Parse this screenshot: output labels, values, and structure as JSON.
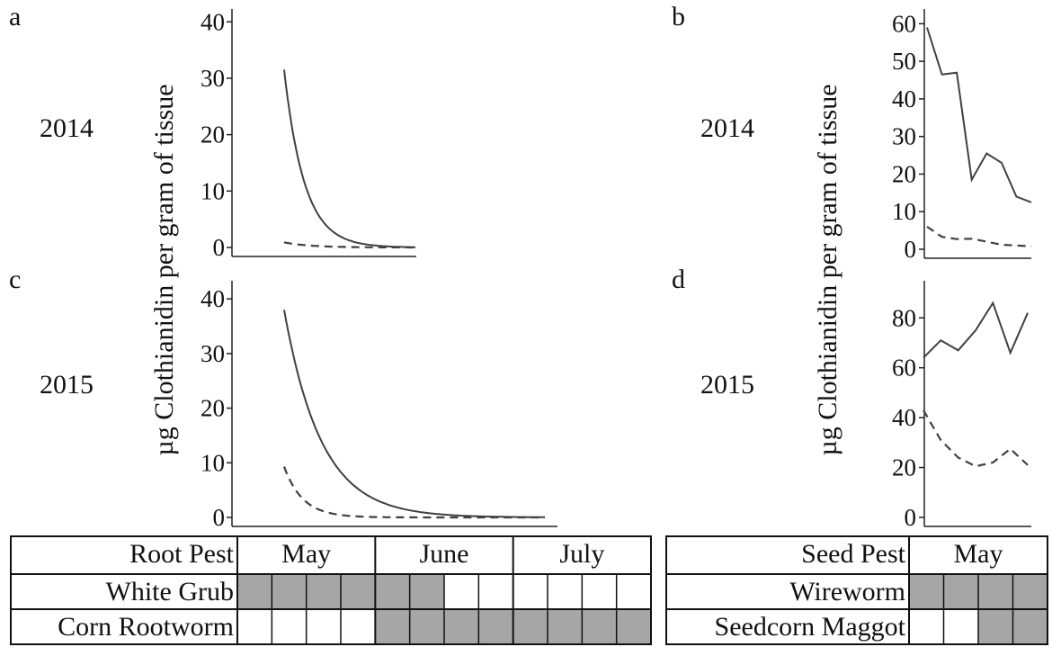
{
  "figure": {
    "ylabel_left": "µg Clothianidin per gram of tissue",
    "ylabel_right": "µg Clothianidin per gram of tissue"
  },
  "chart_data": [
    {
      "panel": "a",
      "row_label": "2014",
      "type": "line",
      "ylim": [
        0,
        41
      ],
      "yticks": [
        0,
        10,
        20,
        30,
        40
      ],
      "xlabel": "",
      "grid": false,
      "legend": "none",
      "series": [
        {
          "style": "solid",
          "model": "exp_decay",
          "y0": 31.5,
          "k": 6.5,
          "x_start": 0.0,
          "x_end": 1.0
        },
        {
          "style": "dashed",
          "model": "exp_decay",
          "y0": 0.9,
          "k": 5.0,
          "x_start": 0.0,
          "x_end": 1.0
        }
      ]
    },
    {
      "panel": "b",
      "row_label": "2014",
      "type": "line",
      "ylim": [
        0,
        62
      ],
      "yticks": [
        0,
        10,
        20,
        30,
        40,
        50,
        60
      ],
      "xlabel": "",
      "grid": false,
      "legend": "none",
      "series": [
        {
          "style": "solid",
          "values": [
            59,
            46.5,
            47,
            18.5,
            25.5,
            23,
            14,
            12.5
          ]
        },
        {
          "style": "dashed",
          "values": [
            6,
            3.3,
            2.7,
            2.8,
            2,
            1.2,
            1,
            0.8
          ]
        }
      ]
    },
    {
      "panel": "c",
      "row_label": "2015",
      "type": "line",
      "ylim": [
        0,
        42
      ],
      "yticks": [
        0,
        10,
        20,
        30,
        40
      ],
      "xlabel": "",
      "grid": false,
      "legend": "none",
      "series": [
        {
          "style": "solid",
          "model": "exp_decay",
          "y0": 38,
          "k": 7.0,
          "x_start": 0.0,
          "x_end": 1.0
        },
        {
          "style": "dashed",
          "model": "exp_decay",
          "y0": 9.3,
          "k": 14.0,
          "x_start": 0.0,
          "x_end": 1.0
        }
      ]
    },
    {
      "panel": "d",
      "row_label": "2015",
      "type": "line",
      "ylim": [
        0,
        92
      ],
      "yticks": [
        0,
        20,
        40,
        60,
        80
      ],
      "xlabel": "",
      "grid": false,
      "legend": "none",
      "series": [
        {
          "style": "solid",
          "values": [
            64,
            71,
            67,
            75,
            86,
            66,
            82
          ]
        },
        {
          "style": "dashed",
          "values": [
            43,
            31,
            24,
            20.5,
            22,
            27.5,
            21
          ]
        }
      ]
    }
  ],
  "root_table": {
    "header_label": "Root Pest",
    "months": [
      "May",
      "June",
      "July"
    ],
    "rows": [
      {
        "label": "White Grub",
        "shaded": [
          1,
          1,
          1,
          1,
          1,
          1,
          0,
          0,
          0,
          0,
          0,
          0
        ]
      },
      {
        "label": "Corn Rootworm",
        "shaded": [
          0,
          0,
          0,
          0,
          1,
          1,
          1,
          1,
          1,
          1,
          1,
          1
        ]
      }
    ],
    "shade_color": "#a6a6a6"
  },
  "seed_table": {
    "header_label": "Seed Pest",
    "months": [
      "May"
    ],
    "rows": [
      {
        "label": "Wireworm",
        "shaded": [
          1,
          1,
          1,
          1
        ]
      },
      {
        "label": "Seedcorn Maggot",
        "shaded": [
          0,
          0,
          1,
          1
        ]
      }
    ],
    "shade_color": "#a6a6a6"
  },
  "colors": {
    "line": "#404040",
    "axis": "#222222"
  }
}
